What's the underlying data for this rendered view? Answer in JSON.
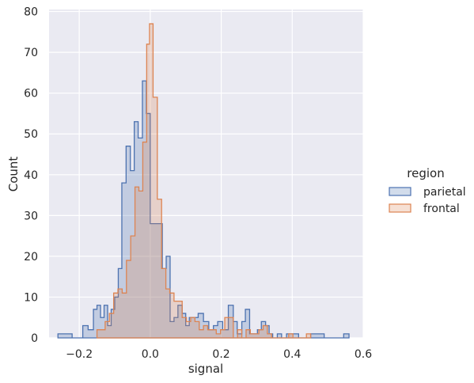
{
  "chart_data": {
    "type": "histogram",
    "element": "step",
    "xlabel": "signal",
    "ylabel": "Count",
    "xlim": [
      -0.285,
      0.6
    ],
    "ylim": [
      0,
      80.5
    ],
    "xticks": [
      -0.2,
      0.0,
      0.2,
      0.4,
      0.6
    ],
    "xtick_labels": [
      "−0.2",
      "0.0",
      "0.2",
      "0.4",
      "0.6"
    ],
    "yticks": [
      0,
      10,
      20,
      30,
      40,
      50,
      60,
      70,
      80
    ],
    "ytick_labels": [
      "0",
      "10",
      "20",
      "30",
      "40",
      "50",
      "60",
      "70",
      "80"
    ],
    "grid": true,
    "legend": {
      "title": "region",
      "position": "right"
    },
    "series": [
      {
        "name": "parietal",
        "color": "#4c72b0",
        "fill_alpha": 0.25,
        "bins": [
          [
            -0.26,
            -0.22,
            1
          ],
          [
            -0.22,
            -0.19,
            0
          ],
          [
            -0.19,
            -0.175,
            3
          ],
          [
            -0.175,
            -0.16,
            2
          ],
          [
            -0.16,
            -0.15,
            7
          ],
          [
            -0.15,
            -0.14,
            8
          ],
          [
            -0.14,
            -0.13,
            5
          ],
          [
            -0.13,
            -0.12,
            8
          ],
          [
            -0.12,
            -0.11,
            3
          ],
          [
            -0.11,
            -0.1,
            7
          ],
          [
            -0.1,
            -0.09,
            10
          ],
          [
            -0.09,
            -0.08,
            17
          ],
          [
            -0.08,
            -0.068,
            38
          ],
          [
            -0.068,
            -0.056,
            47
          ],
          [
            -0.056,
            -0.045,
            41
          ],
          [
            -0.045,
            -0.034,
            53
          ],
          [
            -0.034,
            -0.022,
            49
          ],
          [
            -0.022,
            -0.011,
            63
          ],
          [
            -0.011,
            0.0,
            55
          ],
          [
            0.0,
            0.034,
            28
          ],
          [
            0.034,
            0.045,
            17
          ],
          [
            0.045,
            0.056,
            20
          ],
          [
            0.056,
            0.067,
            4
          ],
          [
            0.067,
            0.078,
            5
          ],
          [
            0.078,
            0.09,
            8
          ],
          [
            0.09,
            0.1,
            6
          ],
          [
            0.1,
            0.11,
            3
          ],
          [
            0.11,
            0.135,
            5
          ],
          [
            0.135,
            0.15,
            6
          ],
          [
            0.15,
            0.165,
            4
          ],
          [
            0.165,
            0.178,
            2
          ],
          [
            0.178,
            0.19,
            3
          ],
          [
            0.19,
            0.204,
            4
          ],
          [
            0.204,
            0.22,
            2
          ],
          [
            0.22,
            0.234,
            8
          ],
          [
            0.234,
            0.245,
            4
          ],
          [
            0.245,
            0.258,
            1
          ],
          [
            0.258,
            0.268,
            4
          ],
          [
            0.268,
            0.28,
            7
          ],
          [
            0.28,
            0.292,
            1
          ],
          [
            0.292,
            0.302,
            1
          ],
          [
            0.302,
            0.313,
            2
          ],
          [
            0.313,
            0.325,
            4
          ],
          [
            0.325,
            0.335,
            3
          ],
          [
            0.335,
            0.345,
            1
          ],
          [
            0.345,
            0.358,
            0
          ],
          [
            0.358,
            0.37,
            1
          ],
          [
            0.37,
            0.384,
            0
          ],
          [
            0.384,
            0.418,
            1
          ],
          [
            0.418,
            0.452,
            0
          ],
          [
            0.452,
            0.49,
            1
          ],
          [
            0.49,
            0.545,
            0
          ],
          [
            0.545,
            0.56,
            1
          ]
        ]
      },
      {
        "name": "frontal",
        "color": "#dd8452",
        "fill_alpha": 0.25,
        "bins": [
          [
            -0.15,
            -0.127,
            2
          ],
          [
            -0.127,
            -0.115,
            4
          ],
          [
            -0.115,
            -0.103,
            6
          ],
          [
            -0.103,
            -0.091,
            11
          ],
          [
            -0.091,
            -0.079,
            12
          ],
          [
            -0.079,
            -0.067,
            11
          ],
          [
            -0.067,
            -0.055,
            19
          ],
          [
            -0.055,
            -0.043,
            25
          ],
          [
            -0.043,
            -0.032,
            37
          ],
          [
            -0.032,
            -0.021,
            36
          ],
          [
            -0.021,
            -0.01,
            48
          ],
          [
            -0.01,
            -0.002,
            72
          ],
          [
            -0.002,
            0.008,
            77
          ],
          [
            0.008,
            0.02,
            59
          ],
          [
            0.02,
            0.032,
            34
          ],
          [
            0.032,
            0.044,
            17
          ],
          [
            0.044,
            0.055,
            12
          ],
          [
            0.055,
            0.067,
            11
          ],
          [
            0.067,
            0.079,
            9
          ],
          [
            0.079,
            0.09,
            9
          ],
          [
            0.09,
            0.102,
            5
          ],
          [
            0.102,
            0.114,
            4
          ],
          [
            0.114,
            0.126,
            5
          ],
          [
            0.126,
            0.138,
            4
          ],
          [
            0.138,
            0.15,
            2
          ],
          [
            0.15,
            0.162,
            3
          ],
          [
            0.162,
            0.174,
            2
          ],
          [
            0.174,
            0.186,
            2
          ],
          [
            0.186,
            0.198,
            1
          ],
          [
            0.198,
            0.21,
            2
          ],
          [
            0.21,
            0.222,
            5
          ],
          [
            0.222,
            0.234,
            5
          ],
          [
            0.234,
            0.246,
            0
          ],
          [
            0.246,
            0.258,
            2
          ],
          [
            0.258,
            0.27,
            0
          ],
          [
            0.27,
            0.282,
            2
          ],
          [
            0.282,
            0.294,
            1
          ],
          [
            0.294,
            0.306,
            1
          ],
          [
            0.306,
            0.318,
            2
          ],
          [
            0.318,
            0.33,
            3
          ],
          [
            0.33,
            0.342,
            1
          ],
          [
            0.342,
            0.39,
            0
          ],
          [
            0.39,
            0.402,
            1
          ],
          [
            0.402,
            0.44,
            0
          ],
          [
            0.44,
            0.452,
            1
          ]
        ]
      }
    ]
  }
}
